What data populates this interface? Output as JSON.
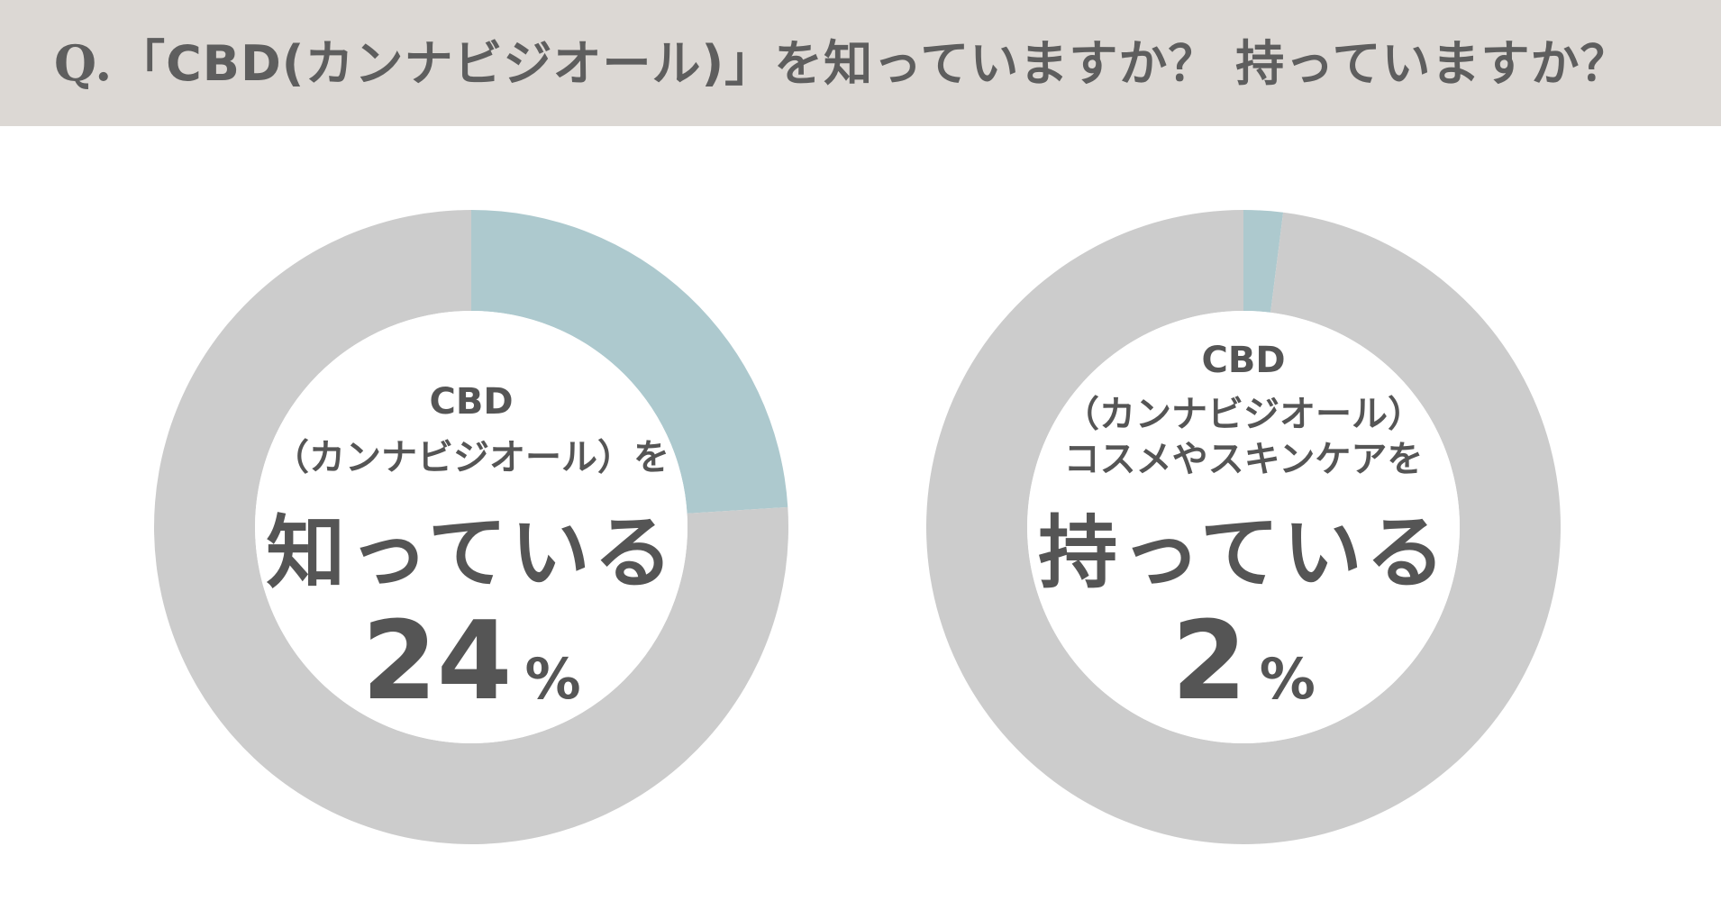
{
  "header": {
    "q_prefix": "Q.",
    "question": "「CBD(カンナビジオール)」を知っていますか？ 持っていますか？"
  },
  "colors": {
    "header_bg": "#dcd8d4",
    "highlight": "#adc9ce",
    "remainder": "#cccccc",
    "text": "#555555"
  },
  "chart_data": [
    {
      "type": "pie",
      "variant": "donut",
      "slices": [
        {
          "label": "知っている",
          "value": 24,
          "color": "#adc9ce"
        },
        {
          "value": 76,
          "color": "#cccccc"
        }
      ],
      "center_label": {
        "line1": "CBD",
        "line2": "（カンナビジオール）を",
        "main": "知っている",
        "value": "24",
        "unit": "%"
      }
    },
    {
      "type": "pie",
      "variant": "donut",
      "slices": [
        {
          "label": "持っている",
          "value": 2,
          "color": "#adc9ce"
        },
        {
          "value": 98,
          "color": "#cccccc"
        }
      ],
      "center_label": {
        "line1": "CBD",
        "line2": "（カンナビジオール）",
        "line3": "コスメやスキンケアを",
        "main": "持っている",
        "value": "2",
        "unit": "%"
      }
    }
  ]
}
